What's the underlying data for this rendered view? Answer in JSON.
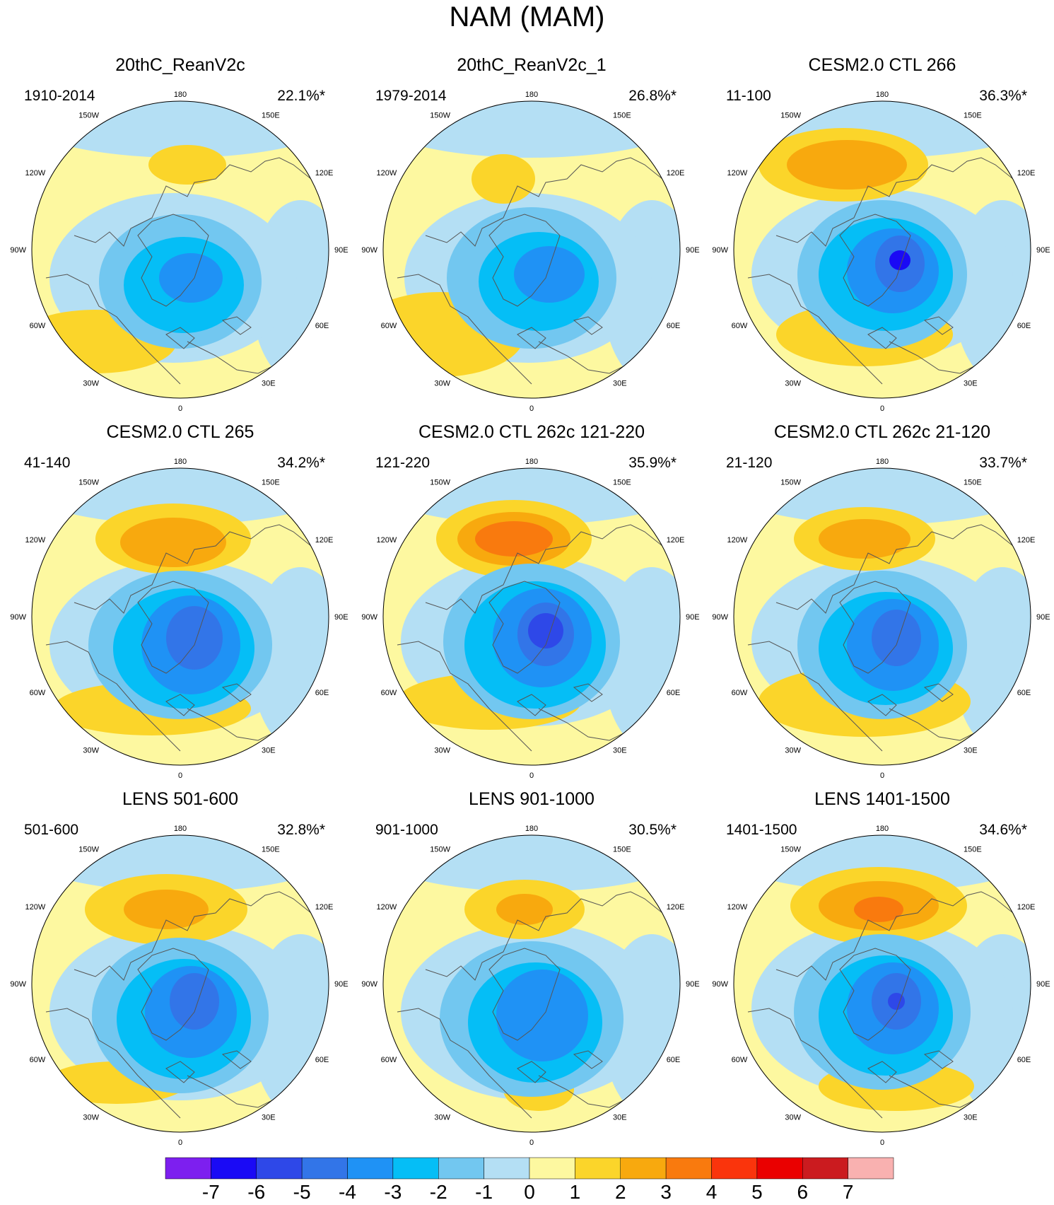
{
  "title": "NAM (MAM)",
  "panels": [
    {
      "title": "20thC_ReanV2c",
      "period": "1910-2014",
      "percent": "22.1%*"
    },
    {
      "title": "20thC_ReanV2c_1",
      "period": "1979-2014",
      "percent": "26.8%*"
    },
    {
      "title": "CESM2.0 CTL 266",
      "period": "11-100",
      "percent": "36.3%*"
    },
    {
      "title": "CESM2.0 CTL 265",
      "period": "41-140",
      "percent": "34.2%*"
    },
    {
      "title": "CESM2.0 CTL 262c 121-220",
      "period": "121-220",
      "percent": "35.9%*"
    },
    {
      "title": "CESM2.0 CTL 262c 21-120",
      "period": "21-120",
      "percent": "33.7%*"
    },
    {
      "title": "LENS 501-600",
      "period": "501-600",
      "percent": "32.8%*"
    },
    {
      "title": "LENS 901-1000",
      "period": "901-1000",
      "percent": "30.5%*"
    },
    {
      "title": "LENS 1401-1500",
      "period": "1401-1500",
      "percent": "34.6%*"
    }
  ],
  "longitude_labels": [
    "180",
    "150W",
    "150E",
    "120W",
    "120E",
    "90W",
    "90E",
    "60W",
    "60E",
    "30W",
    "30E",
    "0"
  ],
  "colorbar": {
    "labels": [
      "-7",
      "-6",
      "-5",
      "-4",
      "-3",
      "-2",
      "-1",
      "0",
      "1",
      "2",
      "3",
      "4",
      "5",
      "6",
      "7"
    ],
    "colors": [
      "#7d1fef",
      "#1a0af5",
      "#2e48e8",
      "#3275e8",
      "#1f92f5",
      "#05bef6",
      "#72c7f0",
      "#b4dff4",
      "#fdf8a0",
      "#fbd52a",
      "#f8a90e",
      "#f97a0e",
      "#fa340c",
      "#ea0000",
      "#cb1b1f",
      "#f9b1b0"
    ]
  },
  "map_colors": {
    "ocean_blue": "#b4dff4",
    "land_yellow": "#fdf8a0",
    "coast": "#555555"
  }
}
